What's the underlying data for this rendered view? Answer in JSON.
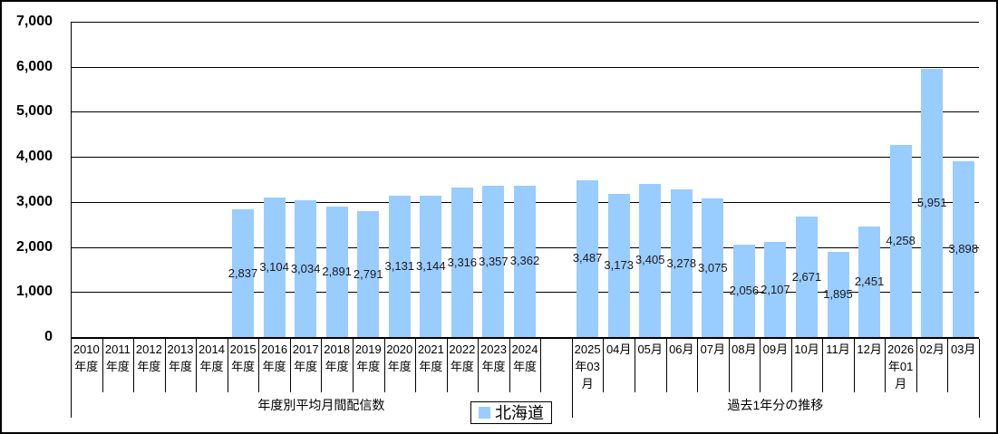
{
  "legend": {
    "series_label": "北海道"
  },
  "colors": {
    "bar_fill": "#99CCFF",
    "grid_line": "#000000",
    "axis_line": "#000000",
    "label_text": "#000000"
  },
  "chart_data": {
    "type": "bar",
    "title": "",
    "grid": true,
    "legend_position": "bottom-center",
    "ylim": [
      0,
      7000
    ],
    "ytick_interval": 1000,
    "yticklabels": [
      "0",
      "1,000",
      "2,000",
      "3,000",
      "4,000",
      "5,000",
      "6,000",
      "7,000"
    ],
    "series_name": "北海道",
    "groups": [
      {
        "label": "年度別平均月間配信数",
        "categories": [
          {
            "label": "2010\n年度",
            "value": null
          },
          {
            "label": "2011\n年度",
            "value": null
          },
          {
            "label": "2012\n年度",
            "value": null
          },
          {
            "label": "2013\n年度",
            "value": null
          },
          {
            "label": "2014\n年度",
            "value": null
          },
          {
            "label": "2015\n年度",
            "value": 2837
          },
          {
            "label": "2016\n年度",
            "value": 3104
          },
          {
            "label": "2017\n年度",
            "value": 3034
          },
          {
            "label": "2018\n年度",
            "value": 2891
          },
          {
            "label": "2019\n年度",
            "value": 2791
          },
          {
            "label": "2020\n年度",
            "value": 3131
          },
          {
            "label": "2021\n年度",
            "value": 3144
          },
          {
            "label": "2022\n年度",
            "value": 3316
          },
          {
            "label": "2023\n年度",
            "value": 3357
          },
          {
            "label": "2024\n年度",
            "value": 3362
          },
          {
            "label": "",
            "value": null
          }
        ]
      },
      {
        "label": "過去1年分の推移",
        "categories": [
          {
            "label": "2025\n年03\n月",
            "value": 3487
          },
          {
            "label": "04月",
            "value": 3173
          },
          {
            "label": "05月",
            "value": 3405
          },
          {
            "label": "06月",
            "value": 3278
          },
          {
            "label": "07月",
            "value": 3075
          },
          {
            "label": "08月",
            "value": 2056
          },
          {
            "label": "09月",
            "value": 2107
          },
          {
            "label": "10月",
            "value": 2671
          },
          {
            "label": "11月",
            "value": 1895
          },
          {
            "label": "12月",
            "value": 2451
          },
          {
            "label": "2026\n年01\n月",
            "value": 4258
          },
          {
            "label": "02月",
            "value": 5951
          },
          {
            "label": "03月",
            "value": 3898
          }
        ]
      }
    ]
  }
}
